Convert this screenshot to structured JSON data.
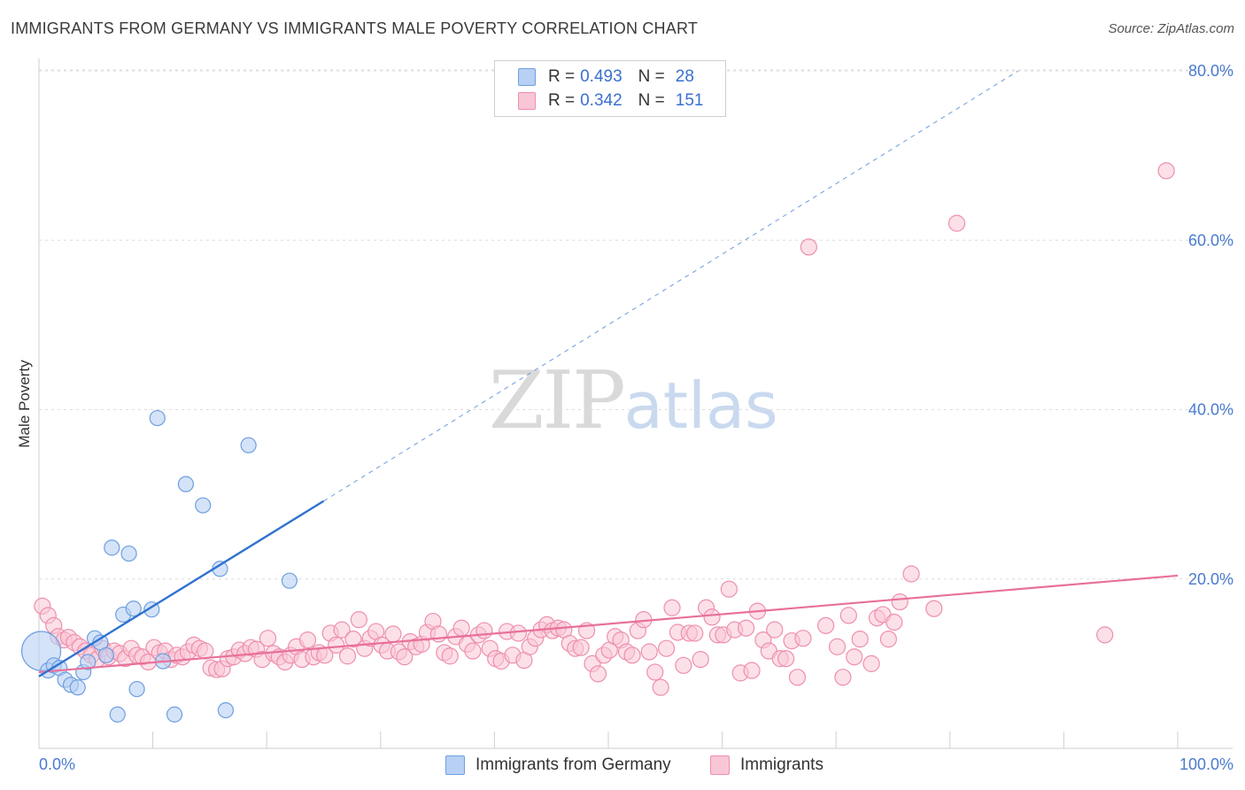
{
  "header": {
    "title": "IMMIGRANTS FROM GERMANY VS IMMIGRANTS MALE POVERTY CORRELATION CHART",
    "source": "Source: ZipAtlas.com"
  },
  "legend": {
    "rows": [
      {
        "r_label": "R =",
        "r_value": "0.493",
        "n_label": "N =",
        "n_value": "28",
        "color": "#a9c8f5"
      },
      {
        "r_label": "R =",
        "r_value": "0.342",
        "n_label": "N =",
        "n_value": "151",
        "color": "#f9bfd0"
      }
    ]
  },
  "bottom_legend": {
    "germany": "Immigrants from Germany",
    "immigrants": "Immigrants"
  },
  "watermark": {
    "zip": "ZIP",
    "atlas": "atlas"
  },
  "chart_data": {
    "type": "scatter",
    "ylabel": "Male Poverty",
    "xlim": [
      0,
      100
    ],
    "ylim": [
      0,
      80
    ],
    "x_tick_labels": [
      "0.0%",
      "100.0%"
    ],
    "y_ticks": [
      20,
      40,
      60,
      80
    ],
    "y_tick_labels": [
      "20.0%",
      "40.0%",
      "60.0%",
      "80.0%"
    ],
    "grid": true,
    "colors": {
      "germany_fill": "#b7d0f3",
      "germany_stroke": "#6f9fe0",
      "germany_line": "#2f72d0",
      "imm_fill": "#f9c6d5",
      "imm_stroke": "#ee8fad",
      "imm_line": "#e8709a"
    },
    "series": [
      {
        "name": "Immigrants from Germany",
        "r": 0.493,
        "n": 28,
        "points": [
          [
            0.2,
            11.5
          ],
          [
            0.8,
            9.2
          ],
          [
            1.3,
            9.8
          ],
          [
            1.8,
            9.5
          ],
          [
            2.3,
            8.1
          ],
          [
            2.8,
            7.5
          ],
          [
            3.4,
            7.2
          ],
          [
            3.9,
            9.0
          ],
          [
            4.3,
            10.2
          ],
          [
            4.9,
            13.0
          ],
          [
            5.4,
            12.5
          ],
          [
            5.9,
            11.0
          ],
          [
            6.4,
            23.7
          ],
          [
            6.9,
            4.0
          ],
          [
            7.4,
            15.8
          ],
          [
            7.9,
            23.0
          ],
          [
            8.3,
            16.5
          ],
          [
            8.6,
            7.0
          ],
          [
            9.9,
            16.4
          ],
          [
            10.4,
            39.0
          ],
          [
            10.9,
            10.3
          ],
          [
            11.9,
            4.0
          ],
          [
            12.9,
            31.2
          ],
          [
            14.4,
            28.7
          ],
          [
            15.9,
            21.2
          ],
          [
            16.4,
            4.5
          ],
          [
            18.4,
            35.8
          ],
          [
            22.0,
            19.8
          ]
        ],
        "sizes": [
          30,
          9,
          9,
          9,
          9,
          9,
          9,
          9,
          9,
          9,
          9,
          9,
          9,
          9,
          9,
          9,
          9,
          9,
          9,
          9,
          9,
          9,
          9,
          9,
          9,
          9,
          9,
          9
        ],
        "trend_solid": [
          [
            0,
            8.5
          ],
          [
            25,
            29.2
          ]
        ],
        "trend_dashed": [
          [
            25,
            29.2
          ],
          [
            86,
            80
          ]
        ]
      },
      {
        "name": "Immigrants",
        "r": 0.342,
        "n": 151,
        "points": [
          [
            0.3,
            16.8
          ],
          [
            0.8,
            15.7
          ],
          [
            1.3,
            14.5
          ],
          [
            1.7,
            13.2
          ],
          [
            2.2,
            12.8
          ],
          [
            2.6,
            13.1
          ],
          [
            3.1,
            12.5
          ],
          [
            3.6,
            12.0
          ],
          [
            4.1,
            11.5
          ],
          [
            4.6,
            11.0
          ],
          [
            5.1,
            10.5
          ],
          [
            5.6,
            11.8
          ],
          [
            6.1,
            10.8
          ],
          [
            6.6,
            11.5
          ],
          [
            7.1,
            11.2
          ],
          [
            7.6,
            10.6
          ],
          [
            8.1,
            11.8
          ],
          [
            8.6,
            11.0
          ],
          [
            9.1,
            10.8
          ],
          [
            9.6,
            10.2
          ],
          [
            10.1,
            11.9
          ],
          [
            10.6,
            11.3
          ],
          [
            11.1,
            11.5
          ],
          [
            11.6,
            10.5
          ],
          [
            12.1,
            11.0
          ],
          [
            12.6,
            10.8
          ],
          [
            13.1,
            11.4
          ],
          [
            13.6,
            12.2
          ],
          [
            14.1,
            11.8
          ],
          [
            14.6,
            11.5
          ],
          [
            15.1,
            9.5
          ],
          [
            15.6,
            9.3
          ],
          [
            16.1,
            9.4
          ],
          [
            16.6,
            10.6
          ],
          [
            17.1,
            10.8
          ],
          [
            17.6,
            11.6
          ],
          [
            18.1,
            11.2
          ],
          [
            18.6,
            11.9
          ],
          [
            19.1,
            11.7
          ],
          [
            19.6,
            10.5
          ],
          [
            20.1,
            13.0
          ],
          [
            20.6,
            11.2
          ],
          [
            21.1,
            10.8
          ],
          [
            21.6,
            10.2
          ],
          [
            22.1,
            11.0
          ],
          [
            22.6,
            12.0
          ],
          [
            23.1,
            10.5
          ],
          [
            23.6,
            12.8
          ],
          [
            24.1,
            10.8
          ],
          [
            24.6,
            11.3
          ],
          [
            25.1,
            11.0
          ],
          [
            25.6,
            13.6
          ],
          [
            26.1,
            12.2
          ],
          [
            26.6,
            14.0
          ],
          [
            27.1,
            10.9
          ],
          [
            27.6,
            12.9
          ],
          [
            28.1,
            15.2
          ],
          [
            28.6,
            11.8
          ],
          [
            29.1,
            13.0
          ],
          [
            29.6,
            13.8
          ],
          [
            30.1,
            12.2
          ],
          [
            30.6,
            11.5
          ],
          [
            31.1,
            13.5
          ],
          [
            31.6,
            11.4
          ],
          [
            32.1,
            10.8
          ],
          [
            32.6,
            12.6
          ],
          [
            33.1,
            12.0
          ],
          [
            33.6,
            12.3
          ],
          [
            34.1,
            13.7
          ],
          [
            34.6,
            15.0
          ],
          [
            35.1,
            13.5
          ],
          [
            35.6,
            11.3
          ],
          [
            36.1,
            10.9
          ],
          [
            36.6,
            13.2
          ],
          [
            37.1,
            14.2
          ],
          [
            37.6,
            12.3
          ],
          [
            38.1,
            11.5
          ],
          [
            38.6,
            13.4
          ],
          [
            39.1,
            13.9
          ],
          [
            39.6,
            11.8
          ],
          [
            40.1,
            10.6
          ],
          [
            40.6,
            10.3
          ],
          [
            41.1,
            13.8
          ],
          [
            41.6,
            11.0
          ],
          [
            42.1,
            13.6
          ],
          [
            42.6,
            10.4
          ],
          [
            43.1,
            12.0
          ],
          [
            43.6,
            13.0
          ],
          [
            44.1,
            14.0
          ],
          [
            44.6,
            14.6
          ],
          [
            45.1,
            13.9
          ],
          [
            45.6,
            14.2
          ],
          [
            46.1,
            14.0
          ],
          [
            46.6,
            12.4
          ],
          [
            47.1,
            11.8
          ],
          [
            47.6,
            11.9
          ],
          [
            48.1,
            13.9
          ],
          [
            48.6,
            10.0
          ],
          [
            49.1,
            8.8
          ],
          [
            49.6,
            11.0
          ],
          [
            50.1,
            11.6
          ],
          [
            50.6,
            13.2
          ],
          [
            51.1,
            12.8
          ],
          [
            51.6,
            11.4
          ],
          [
            52.1,
            11.0
          ],
          [
            52.6,
            13.9
          ],
          [
            53.1,
            15.2
          ],
          [
            53.6,
            11.4
          ],
          [
            54.1,
            9.0
          ],
          [
            54.6,
            7.2
          ],
          [
            55.1,
            11.8
          ],
          [
            55.6,
            16.6
          ],
          [
            56.1,
            13.7
          ],
          [
            56.6,
            9.8
          ],
          [
            57.1,
            13.6
          ],
          [
            57.6,
            13.6
          ],
          [
            58.1,
            10.5
          ],
          [
            58.6,
            16.6
          ],
          [
            59.1,
            15.5
          ],
          [
            59.6,
            13.4
          ],
          [
            60.1,
            13.4
          ],
          [
            60.6,
            18.8
          ],
          [
            61.1,
            14.0
          ],
          [
            61.6,
            8.9
          ],
          [
            62.1,
            14.2
          ],
          [
            62.6,
            9.2
          ],
          [
            63.1,
            16.2
          ],
          [
            63.6,
            12.8
          ],
          [
            64.1,
            11.5
          ],
          [
            64.6,
            14.0
          ],
          [
            65.1,
            10.6
          ],
          [
            65.6,
            10.6
          ],
          [
            66.1,
            12.7
          ],
          [
            66.6,
            8.4
          ],
          [
            67.1,
            13.0
          ],
          [
            67.6,
            59.2
          ],
          [
            69.1,
            14.5
          ],
          [
            70.1,
            12.0
          ],
          [
            70.6,
            8.4
          ],
          [
            71.1,
            15.7
          ],
          [
            71.6,
            10.8
          ],
          [
            72.1,
            12.9
          ],
          [
            73.1,
            10.0
          ],
          [
            73.6,
            15.4
          ],
          [
            74.1,
            15.8
          ],
          [
            74.6,
            12.9
          ],
          [
            75.1,
            14.9
          ],
          [
            75.6,
            17.3
          ],
          [
            76.6,
            20.6
          ],
          [
            78.6,
            16.5
          ],
          [
            80.6,
            62.0
          ],
          [
            93.6,
            13.4
          ],
          [
            99.0,
            68.2
          ]
        ],
        "trend_solid": [
          [
            0,
            9.0
          ],
          [
            100,
            20.4
          ]
        ]
      }
    ]
  }
}
